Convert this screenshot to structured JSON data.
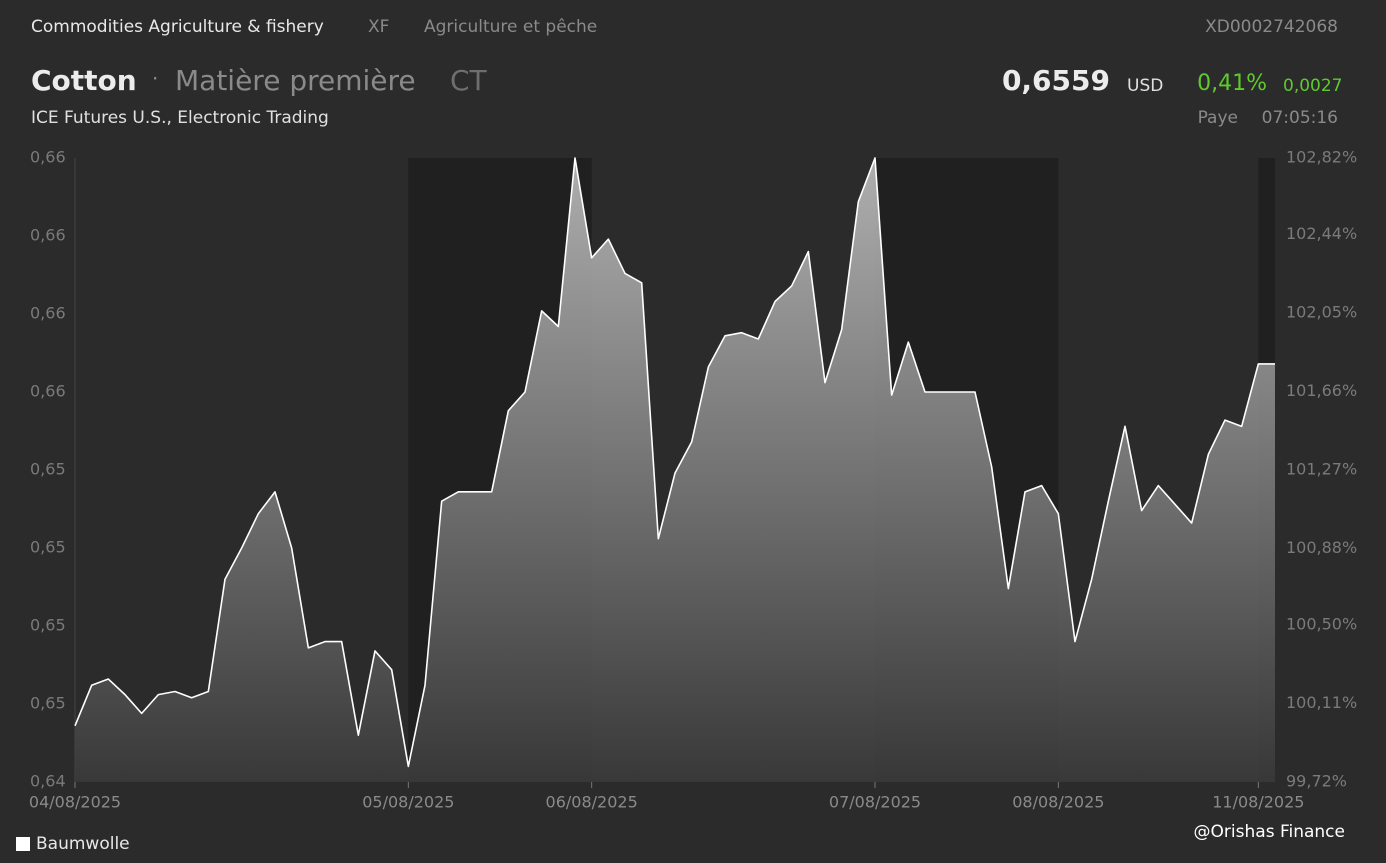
{
  "header": {
    "sector": "Commodities Agriculture & fishery",
    "code": "XF",
    "sector_fr": "Agriculture et pêche",
    "isin": "XD0002742068",
    "name": "Cotton",
    "separator": "·",
    "kind": "Matière première",
    "ticker": "CT",
    "price": "0,6559",
    "currency": "USD",
    "change_pct": "0,41%",
    "change_abs": "0,0027",
    "exchange": "ICE Futures U.S., Electronic Trading",
    "country": "Paye",
    "time": "07:05:16"
  },
  "chart_data": {
    "type": "area",
    "categories": [
      "04/08/2025",
      null,
      null,
      null,
      null,
      null,
      null,
      null,
      null,
      null,
      null,
      null,
      null,
      null,
      null,
      null,
      null,
      null,
      null,
      null,
      "05/08/2025",
      null,
      null,
      null,
      null,
      null,
      null,
      null,
      null,
      null,
      null,
      "06/08/2025",
      null,
      null,
      null,
      null,
      null,
      null,
      null,
      null,
      null,
      null,
      null,
      null,
      null,
      null,
      null,
      null,
      "07/08/2025",
      null,
      null,
      null,
      null,
      null,
      null,
      null,
      null,
      null,
      null,
      "08/08/2025",
      null,
      null,
      null,
      null,
      null,
      null,
      null,
      null,
      null,
      null,
      null,
      "11/08/2025",
      null
    ],
    "series": [
      {
        "name": "Baumwolle",
        "color": "#ffffff",
        "values": [
          0.6463,
          0.6476,
          0.6478,
          0.6473,
          0.6467,
          0.6473,
          0.6474,
          0.6472,
          0.6474,
          0.651,
          0.652,
          0.6531,
          0.6538,
          0.652,
          0.6488,
          0.649,
          0.649,
          0.646,
          0.6487,
          0.6481,
          0.645,
          0.6476,
          0.6535,
          0.6538,
          0.6538,
          0.6538,
          0.6564,
          0.657,
          0.6596,
          0.6591,
          0.6645,
          0.6613,
          0.6619,
          0.6608,
          0.6605,
          0.6523,
          0.6544,
          0.6554,
          0.6578,
          0.6588,
          0.6589,
          0.6587,
          0.6599,
          0.6604,
          0.6615,
          0.6573,
          0.659,
          0.6631,
          0.6645,
          0.6569,
          0.6586,
          0.657,
          0.657,
          0.657,
          0.657,
          0.6546,
          0.6507,
          0.6538,
          0.654,
          0.6531,
          0.649,
          0.651,
          0.6535,
          0.6559,
          0.6532,
          0.654,
          0.6534,
          0.6528,
          0.655,
          0.6561,
          0.6559,
          0.6579,
          0.6579
        ]
      }
    ],
    "ylim": [
      0.6445,
      0.6645
    ],
    "yticks": [
      {
        "value": 0.6445,
        "label": "0,64"
      },
      {
        "value": 0.647,
        "label": "0,65"
      },
      {
        "value": 0.6495,
        "label": "0,65"
      },
      {
        "value": 0.652,
        "label": "0,65"
      },
      {
        "value": 0.6545,
        "label": "0,65"
      },
      {
        "value": 0.657,
        "label": "0,66"
      },
      {
        "value": 0.6595,
        "label": "0,66"
      },
      {
        "value": 0.662,
        "label": "0,66"
      },
      {
        "value": 0.6645,
        "label": "0,66"
      }
    ],
    "y2lim": [
      99.72,
      102.82
    ],
    "y2ticks": [
      {
        "value": 99.72,
        "label": "99,72%"
      },
      {
        "value": 100.11,
        "label": "100,11%"
      },
      {
        "value": 100.5,
        "label": "100,50%"
      },
      {
        "value": 100.88,
        "label": "100,88%"
      },
      {
        "value": 101.27,
        "label": "101,27%"
      },
      {
        "value": 101.66,
        "label": "101,66%"
      },
      {
        "value": 102.05,
        "label": "102,05%"
      },
      {
        "value": 102.44,
        "label": "102,44%"
      },
      {
        "value": 102.82,
        "label": "102,82%"
      }
    ],
    "grid": false,
    "legend": "bottom-left"
  },
  "watermark": "@Orishas Finance"
}
